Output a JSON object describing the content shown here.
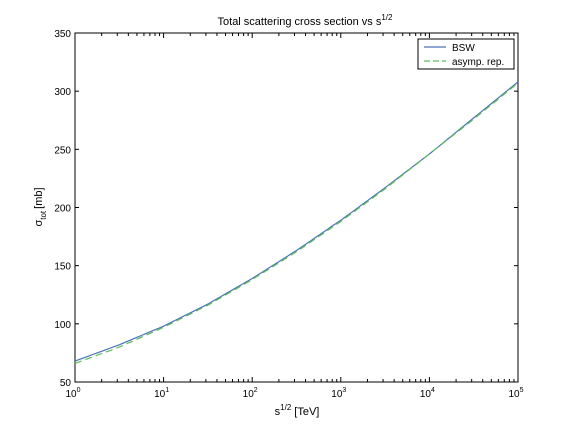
{
  "chart_data": {
    "type": "line",
    "title": "Total scattering cross section vs s",
    "title_sup": "1/2",
    "xlabel_base": "s",
    "xlabel_sup": "1/2",
    "xlabel_unit": "[TeV]",
    "ylabel_base": "σ",
    "ylabel_sub": "tot",
    "ylabel_unit": "[mb]",
    "x_scale": "log",
    "xlim": [
      1,
      100000
    ],
    "ylim": [
      50,
      350
    ],
    "grid": false,
    "legend_position": "top-right",
    "x_ticks": [
      {
        "value": 1,
        "base": "10",
        "exp": "0"
      },
      {
        "value": 10,
        "base": "10",
        "exp": "1"
      },
      {
        "value": 100,
        "base": "10",
        "exp": "2"
      },
      {
        "value": 1000,
        "base": "10",
        "exp": "3"
      },
      {
        "value": 10000,
        "base": "10",
        "exp": "4"
      },
      {
        "value": 100000,
        "base": "10",
        "exp": "5"
      }
    ],
    "y_ticks": [
      "50",
      "100",
      "150",
      "200",
      "250",
      "300",
      "350"
    ],
    "x": [
      1,
      3.16,
      10,
      31.6,
      100,
      316,
      1000,
      3162,
      10000,
      31623,
      100000
    ],
    "series": [
      {
        "name": "BSW",
        "color": "#4a72b8",
        "style": "solid",
        "values": [
          68,
          82,
          98,
          117,
          139,
          163,
          189,
          217,
          246,
          277,
          308
        ]
      },
      {
        "name": "asymp. rep.",
        "color": "#5cc05c",
        "style": "dashed",
        "values": [
          66,
          80,
          97,
          116,
          138,
          162,
          188,
          216,
          246,
          276,
          307
        ]
      }
    ]
  }
}
